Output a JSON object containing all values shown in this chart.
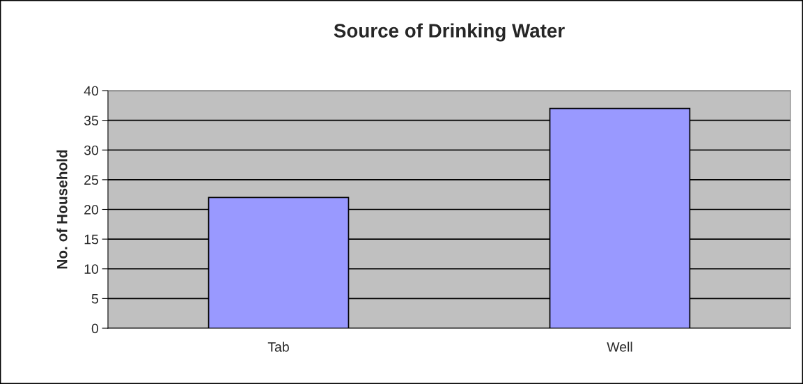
{
  "chart_data": {
    "type": "bar",
    "title": "Source of Drinking Water",
    "ylabel": "No. of Household",
    "categories": [
      "Tab",
      "Well"
    ],
    "values": [
      22,
      37
    ],
    "color": "#9999ff",
    "ylim": [
      0,
      40
    ],
    "yticks": [
      0,
      5,
      10,
      15,
      20,
      25,
      30,
      35,
      40
    ],
    "grid": "y"
  }
}
